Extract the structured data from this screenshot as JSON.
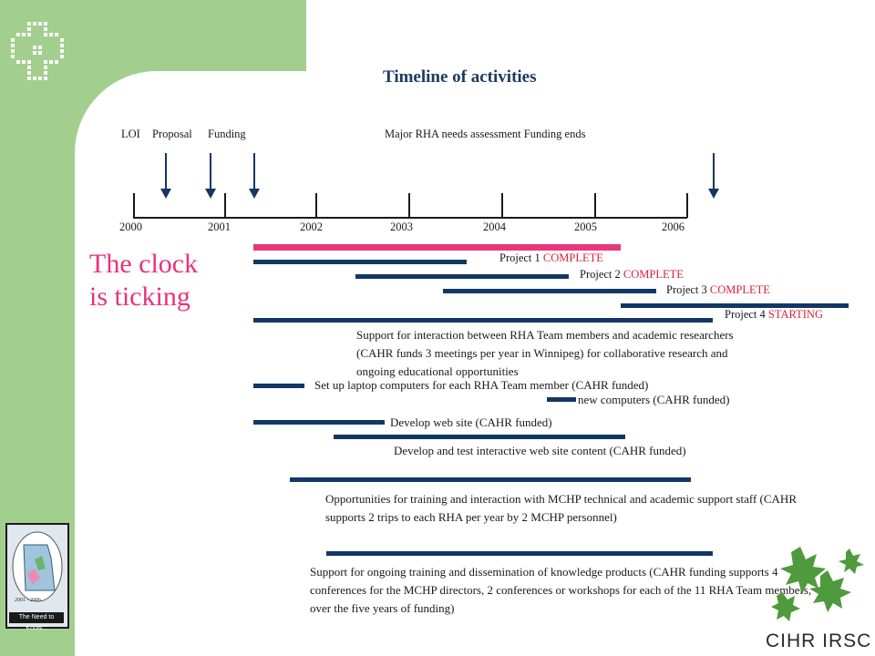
{
  "title": "Timeline of activities",
  "milestones": {
    "loi": "LOI",
    "proposal": "Proposal",
    "funding": "Funding",
    "major": "Major RHA needs assessment Funding ends"
  },
  "years": [
    "2000",
    "2001",
    "2002",
    "2003",
    "2004",
    "2005",
    "2006"
  ],
  "clock": {
    "line1": "The clock",
    "line2": "is ticking"
  },
  "projects": {
    "p1_label": "Project 1",
    "p1_status": "COMPLETE",
    "p2_label": "Project 2",
    "p2_status": "COMPLETE",
    "p3_label": "Project 3",
    "p3_status": "COMPLETE",
    "p4_label": "Project 4",
    "p4_status": "STARTING"
  },
  "notes": {
    "support_interaction": "Support for interaction between RHA Team members and academic researchers (CAHR funds 3 meetings per year in Winnipeg) for collaborative research and ongoing educational opportunities",
    "laptops": "Set up laptop computers for each RHA Team member (CAHR funded)",
    "new_computers": "new computers (CAHR funded)",
    "web_site": "Develop web site (CAHR funded)",
    "web_content": "Develop and test interactive web site content (CAHR funded)",
    "training": "Opportunities for training and interaction with MCHP technical and academic support staff (CAHR supports 2 trips to each RHA per year by 2 MCHP personnel)",
    "dissemination": "Support for ongoing training and dissemination of knowledge products (CAHR funding supports 4 conferences for the MCHP directors, 2 conferences or workshops for each of the 11 RHA Team members, over the five years of funding)"
  },
  "logo": {
    "book_years": "2001 - 2006",
    "book_caption": "The Need to Know...",
    "org": "CIHR IRSC"
  },
  "colors": {
    "sidebar": "#a2cf8e",
    "bar": "#123765",
    "accent_pink": "#e8377a",
    "status_red": "#d8213a"
  }
}
